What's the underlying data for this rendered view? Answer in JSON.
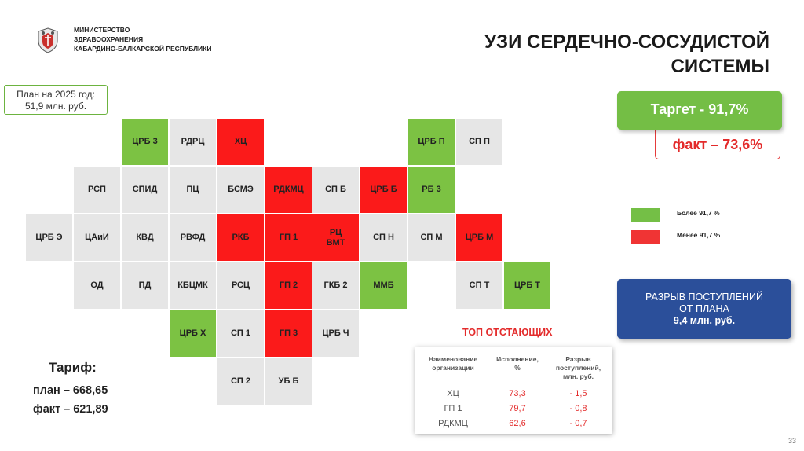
{
  "header": {
    "ministry_lines": [
      "МИНИСТЕРСТВО",
      "ЗДРАВООХРАНЕНИЯ",
      "КАБАРДИНО-БАЛКАРСКОЙ РЕСПУБЛИКИ"
    ],
    "title_lines": [
      "УЗИ СЕРДЕЧНО-СОСУДИСТОЙ",
      "СИСТЕМЫ"
    ]
  },
  "plan": {
    "line1": "План на 2025 год:",
    "line2": "51,9 млн. руб."
  },
  "target": {
    "label": "Таргет  -  91,7%",
    "color": "#74be45"
  },
  "fact": {
    "label": "факт – 73,6%",
    "color": "#e32b2b"
  },
  "legend": {
    "above": "Более 91,7 %",
    "below": "Менее 91,7 %",
    "above_color": "#74bf46",
    "below_color": "#f03434"
  },
  "tiles": [
    {
      "label": "ЦРБ 3",
      "status": "green"
    },
    {
      "label": "РДРЦ",
      "status": "grey"
    },
    {
      "label": "ХЦ",
      "status": "red"
    },
    {
      "label": "ЦРБ П",
      "status": "green"
    },
    {
      "label": "СП П",
      "status": "grey"
    },
    {
      "label": "РСП",
      "status": "grey"
    },
    {
      "label": "СПИД",
      "status": "grey"
    },
    {
      "label": "ПЦ",
      "status": "grey"
    },
    {
      "label": "БСМЭ",
      "status": "grey"
    },
    {
      "label": "РДКМЦ",
      "status": "red"
    },
    {
      "label": "СП Б",
      "status": "grey"
    },
    {
      "label": "ЦРБ Б",
      "status": "red"
    },
    {
      "label": "РБ 3",
      "status": "green"
    },
    {
      "label": "ЦРБ Э",
      "status": "grey"
    },
    {
      "label": "ЦАиИ",
      "status": "grey"
    },
    {
      "label": "КВД",
      "status": "grey"
    },
    {
      "label": "РВФД",
      "status": "grey"
    },
    {
      "label": "РКБ",
      "status": "red"
    },
    {
      "label": "ГП 1",
      "status": "red"
    },
    {
      "label": "РЦ ВМТ",
      "status": "red"
    },
    {
      "label": "СП Н",
      "status": "grey"
    },
    {
      "label": "СП М",
      "status": "grey"
    },
    {
      "label": "ЦРБ М",
      "status": "red"
    },
    {
      "label": "ОД",
      "status": "grey"
    },
    {
      "label": "ПД",
      "status": "grey"
    },
    {
      "label": "КБЦМК",
      "status": "grey"
    },
    {
      "label": "РСЦ",
      "status": "grey"
    },
    {
      "label": "ГП 2",
      "status": "red"
    },
    {
      "label": "ГКБ 2",
      "status": "grey"
    },
    {
      "label": "ММБ",
      "status": "green"
    },
    {
      "label": "СП Т",
      "status": "grey"
    },
    {
      "label": "ЦРБ Т",
      "status": "green"
    },
    {
      "label": "ЦРБ Х",
      "status": "green"
    },
    {
      "label": "СП 1",
      "status": "grey"
    },
    {
      "label": "ГП 3",
      "status": "red"
    },
    {
      "label": "ЦРБ Ч",
      "status": "grey"
    },
    {
      "label": "СП 2",
      "status": "grey"
    },
    {
      "label": "УБ Б",
      "status": "grey"
    }
  ],
  "gap": {
    "line1": "РАЗРЫВ ПОСТУПЛЕНИЙ",
    "line2": "ОТ ПЛАНА",
    "line3": "9,4 млн. руб."
  },
  "laggards": {
    "title": "ТОП ОТСТАЮЩИХ",
    "headers": {
      "name": [
        "Наименование",
        "организации"
      ],
      "exec": [
        "Исполнение,",
        "%"
      ],
      "gap": [
        "Разрыв",
        "поступлений,",
        "млн. руб."
      ]
    },
    "rows": [
      {
        "name": "ХЦ",
        "exec": "73,3",
        "gap": "- 1,5"
      },
      {
        "name": "ГП 1",
        "exec": "79,7",
        "gap": "- 0,8"
      },
      {
        "name": "РДКМЦ",
        "exec": "62,6",
        "gap": "- 0,7"
      }
    ]
  },
  "tariff": {
    "title": "Тариф:",
    "plan": "план – 668,65",
    "fact": "факт – 621,89"
  },
  "page_number": "33"
}
